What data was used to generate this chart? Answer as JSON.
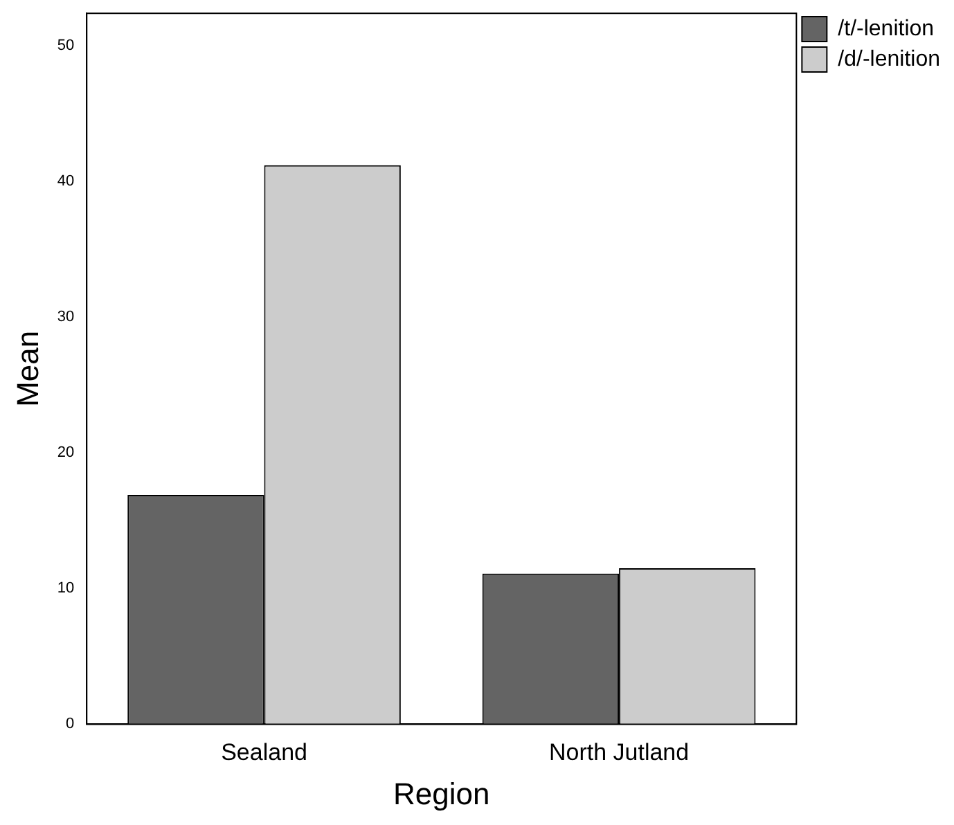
{
  "chart_data": {
    "type": "bar",
    "xlabel": "Region",
    "ylabel": "Mean",
    "categories": [
      "Sealand",
      "North Jutland"
    ],
    "series": [
      {
        "name": "/t/-lenition",
        "color": "#646464",
        "values": [
          16.9,
          11.1
        ]
      },
      {
        "name": "/d/-lenition",
        "color": "#cccccc",
        "values": [
          41.2,
          11.5
        ]
      }
    ],
    "ylim": [
      0,
      52.4
    ],
    "yticks": [
      0,
      10,
      20,
      30,
      40,
      50
    ],
    "grid": false,
    "legend": "top right"
  }
}
